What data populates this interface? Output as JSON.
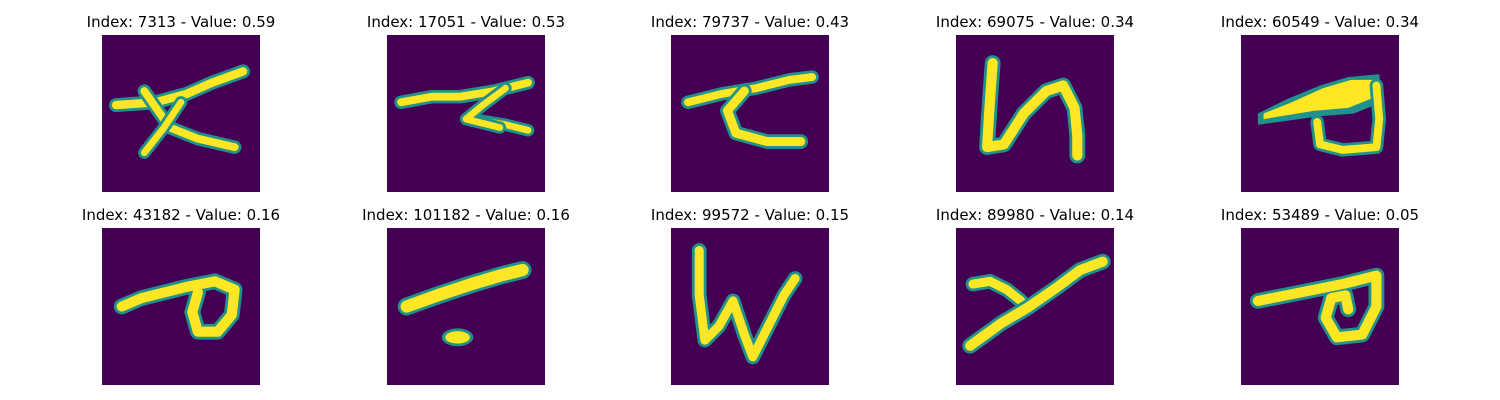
{
  "figure": {
    "colormap": "viridis",
    "background_color": "#440154",
    "stroke_color": "#fde725",
    "edge_color": "#21918c",
    "panels": [
      {
        "index": 7313,
        "value": 0.59,
        "title": "Index: 7313 - Value: 0.59",
        "glyph": "slanted-x-with-overline"
      },
      {
        "index": 17051,
        "value": 0.53,
        "title": "Index: 17051 - Value: 0.53",
        "glyph": "zigzag-z-stroke"
      },
      {
        "index": 79737,
        "value": 0.43,
        "title": "Index: 79737 - Value: 0.43",
        "glyph": "sigma-like-stroke"
      },
      {
        "index": 69075,
        "value": 0.34,
        "title": "Index: 69075 - Value: 0.34",
        "glyph": "n-like-loop"
      },
      {
        "index": 60549,
        "value": 0.34,
        "title": "Index: 60549 - Value: 0.34",
        "glyph": "filled-wedge-with-loop"
      },
      {
        "index": 43182,
        "value": 0.16,
        "title": "Index: 43182 - Value: 0.16",
        "glyph": "hook-with-oval"
      },
      {
        "index": 101182,
        "value": 0.16,
        "title": "Index: 101182 - Value: 0.16",
        "glyph": "slash-with-dot"
      },
      {
        "index": 99572,
        "value": 0.15,
        "title": "Index: 99572 - Value: 0.15",
        "glyph": "w-like-stroke"
      },
      {
        "index": 89980,
        "value": 0.14,
        "title": "Index: 89980 - Value: 0.14",
        "glyph": "y-like-stroke"
      },
      {
        "index": 53489,
        "value": 0.05,
        "title": "Index: 53489 - Value: 0.05",
        "glyph": "hook-with-small-loop"
      }
    ]
  }
}
